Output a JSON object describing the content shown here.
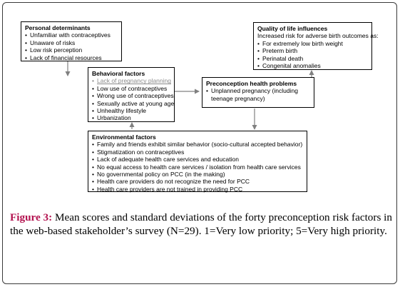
{
  "diagram": {
    "personal_determinants": {
      "title": "Personal determinants",
      "items": [
        "Unfamiliar with contraceptives",
        "Unaware of risks",
        "Low risk perception",
        "Lack of financial resources"
      ]
    },
    "quality_of_life": {
      "title": "Quality of life influences",
      "subtitle": "Increased risk for adverse birth outcomes as:",
      "items": [
        "For extremely low birth weight",
        "Preterm birth",
        "Perinatal death",
        "Congenital anomalies"
      ]
    },
    "behavioral_factors": {
      "title": "Behavioral factors",
      "items": [
        "Lack of pregnancy planning",
        "Low use of contraceptives",
        "Wrong use of contraceptives",
        "Sexually active at young age",
        "Unhealthy lifestyle",
        "Urbanization"
      ]
    },
    "preconception_problems": {
      "title": "Preconception health problems",
      "item": "Unplanned pregnancy  (including",
      "item_cont": "teenage pregnancy)"
    },
    "environmental_factors": {
      "title": "Environmental factors",
      "items": [
        "Family and friends exhibit similar behavior (socio-cultural accepted behavior)",
        "Stigmatization on contraceptives",
        "Lack of adequate health care services and education",
        "No equal access to health care services / isolation from health care services",
        "No governmental policy on PCC (in the making)",
        "Health care providers do not recognize the need for PCC",
        "Health care providers are not trained in providing PCC"
      ]
    }
  },
  "caption": {
    "label": "Figure 3:",
    "text": " Mean scores and standard deviations of the forty preconception risk factors in the web-based stakeholder’s survey (N=29). 1=Very low priority; 5=Very high priority."
  },
  "colors": {
    "caption_label": "#b3124f",
    "arrow": "#808080",
    "muted_item": "#8a8a8a"
  }
}
